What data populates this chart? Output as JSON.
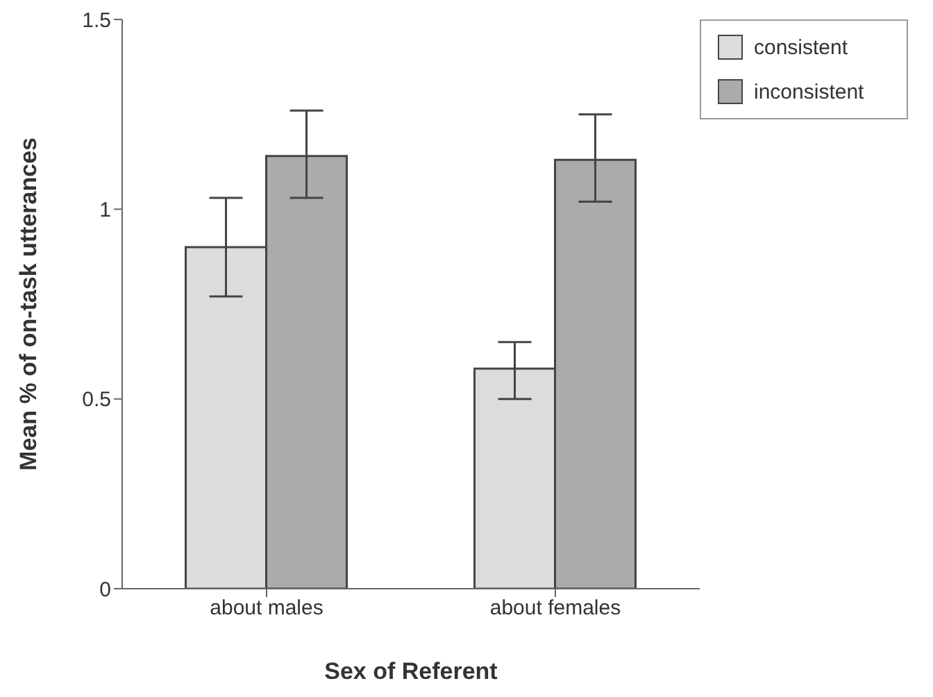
{
  "chart_data": {
    "type": "bar",
    "xlabel": "Sex of Referent",
    "ylabel": "Mean % of on-task utterances",
    "categories": [
      "about males",
      "about females"
    ],
    "series": [
      {
        "name": "consistent",
        "color": "#dcdcdc",
        "values": [
          0.9,
          0.58
        ],
        "errors": [
          [
            0.77,
            1.03
          ],
          [
            0.5,
            0.65
          ]
        ]
      },
      {
        "name": "inconsistent",
        "color": "#ababab",
        "values": [
          1.14,
          1.13
        ],
        "errors": [
          [
            1.03,
            1.26
          ],
          [
            1.02,
            1.25
          ]
        ]
      }
    ],
    "ylim": [
      0,
      1.5
    ],
    "yticks": [
      0,
      0.5,
      1,
      1.5
    ],
    "grid": false,
    "legend": "top right"
  }
}
